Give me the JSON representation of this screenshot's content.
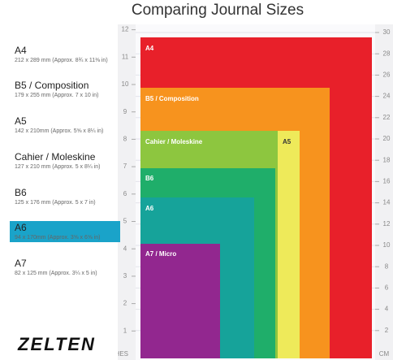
{
  "header": {
    "title": "Comparing Journal Sizes"
  },
  "sizes": [
    {
      "name": "A4",
      "detail": "212 x 289 mm (Approx. 8¾ x 11⅜ in)",
      "label": "A4"
    },
    {
      "name": "B5 / Composition",
      "detail": "179 x 255 mm (Approx. 7 x 10 in)",
      "label": "B5 / Composition"
    },
    {
      "name": "A5",
      "detail": "142 x 210mm (Approx. 5⅝ x 8¼ in)",
      "label": "A5"
    },
    {
      "name": "Cahier / Moleskine",
      "detail": "127 x 210 mm (Approx. 5 x 8¼ in)",
      "label": "Cahier / Moleskine"
    },
    {
      "name": "B6",
      "detail": "125 x 176 mm (Approx. 5 x 7 in)",
      "label": "B6"
    },
    {
      "name": "A6",
      "detail": "94 x 170mm (Approx. 3⅝ x 6⅝ in)",
      "label": "A6"
    },
    {
      "name": "A7",
      "detail": "82 x 125 mm (Approx. 3¼ x 5 in)",
      "label": "A7 / Micro"
    }
  ],
  "rulers": {
    "inches": {
      "unit": "INCHES",
      "ticks": [
        1,
        2,
        3,
        4,
        5,
        6,
        7,
        8,
        9,
        10,
        11,
        12
      ]
    },
    "cm": {
      "unit": "CM",
      "ticks": [
        2,
        4,
        6,
        8,
        10,
        12,
        14,
        16,
        18,
        20,
        22,
        24,
        26,
        28,
        30
      ]
    }
  },
  "logo": "ZELTEN"
}
